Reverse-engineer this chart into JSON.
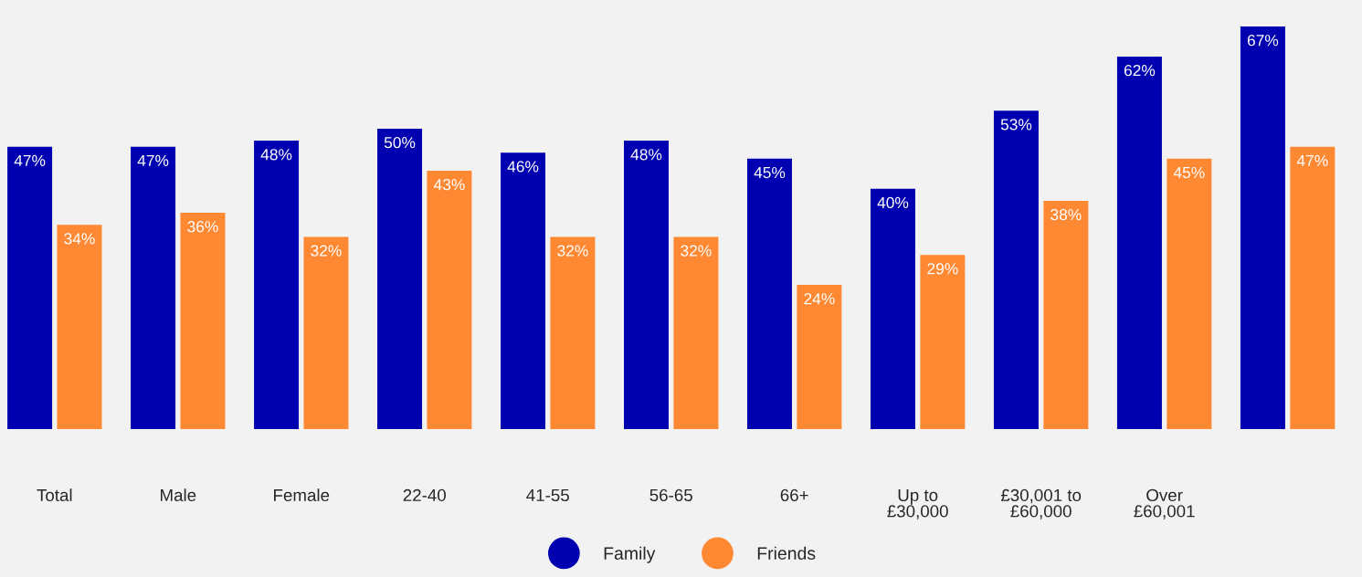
{
  "chart_data": {
    "type": "bar",
    "categories": [
      "Total",
      "Male",
      "Female",
      "22-40",
      "41-55",
      "56-65",
      "66+",
      "Up to\n£30,000",
      "£30,001 to\n£60,000",
      "Over\n£60,001",
      null
    ],
    "series": [
      {
        "name": "Family",
        "color": "#0000b0",
        "values": [
          47,
          47,
          48,
          50,
          46,
          48,
          45,
          40,
          53,
          62,
          67
        ],
        "value_labels": [
          "47%",
          "47%",
          "48%",
          "50%",
          "46%",
          "48%",
          "45%",
          "40%",
          "53%",
          "62%",
          "67%"
        ]
      },
      {
        "name": "Friends",
        "color": "#ff8833",
        "values": [
          34,
          36,
          32,
          43,
          32,
          32,
          24,
          29,
          38,
          45,
          47
        ],
        "value_labels": [
          "34%",
          "36%",
          "32%",
          "43%",
          "32%",
          "32%",
          "24%",
          "29%",
          "38%",
          "45%",
          "47%"
        ]
      }
    ],
    "legend": "bottom",
    "marker": "circle",
    "grid": false
  }
}
